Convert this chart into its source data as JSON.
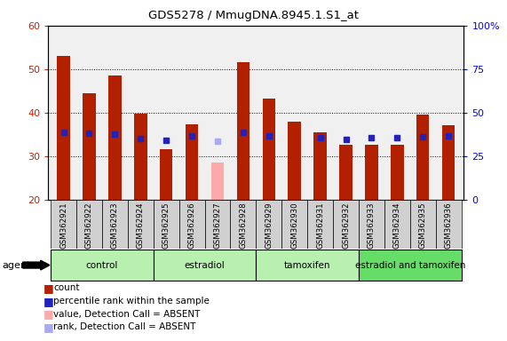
{
  "title": "GDS5278 / MmugDNA.8945.1.S1_at",
  "samples": [
    "GSM362921",
    "GSM362922",
    "GSM362923",
    "GSM362924",
    "GSM362925",
    "GSM362926",
    "GSM362927",
    "GSM362928",
    "GSM362929",
    "GSM362930",
    "GSM362931",
    "GSM362932",
    "GSM362933",
    "GSM362934",
    "GSM362935",
    "GSM362936"
  ],
  "count_values": [
    53.0,
    44.5,
    48.5,
    39.8,
    31.5,
    37.2,
    28.5,
    51.5,
    43.2,
    38.0,
    35.5,
    32.5,
    32.5,
    32.5,
    39.5,
    37.0
  ],
  "rank_values": [
    38.5,
    38.0,
    37.5,
    35.2,
    34.0,
    36.5,
    33.5,
    38.5,
    36.5,
    null,
    35.5,
    34.5,
    35.5,
    35.5,
    36.0,
    36.5
  ],
  "absent_count": [
    null,
    null,
    null,
    null,
    null,
    null,
    28.5,
    null,
    null,
    null,
    null,
    null,
    null,
    null,
    null,
    null
  ],
  "absent_rank": [
    null,
    null,
    null,
    null,
    null,
    null,
    33.5,
    null,
    null,
    null,
    null,
    null,
    null,
    null,
    null,
    null
  ],
  "ylim": [
    20,
    60
  ],
  "yticks": [
    20,
    30,
    40,
    50,
    60
  ],
  "y2lim": [
    0,
    100
  ],
  "y2ticks": [
    0,
    25,
    50,
    75,
    100
  ],
  "y2labels": [
    "0",
    "25",
    "50",
    "75",
    "100%"
  ],
  "bar_color": "#b22000",
  "rank_color": "#2222bb",
  "absent_bar_color": "#ffaaaa",
  "absent_rank_color": "#aaaaee",
  "groups": [
    {
      "label": "control",
      "start": 0,
      "end": 4,
      "color": "#b8f0b0"
    },
    {
      "label": "estradiol",
      "start": 4,
      "end": 8,
      "color": "#b8f0b0"
    },
    {
      "label": "tamoxifen",
      "start": 8,
      "end": 12,
      "color": "#b8f0b0"
    },
    {
      "label": "estradiol and tamoxifen",
      "start": 12,
      "end": 16,
      "color": "#66dd66"
    }
  ],
  "legend_items": [
    {
      "label": "count",
      "color": "#b22000"
    },
    {
      "label": "percentile rank within the sample",
      "color": "#2222bb"
    },
    {
      "label": "value, Detection Call = ABSENT",
      "color": "#ffaaaa"
    },
    {
      "label": "rank, Detection Call = ABSENT",
      "color": "#aaaaee"
    }
  ],
  "bar_width": 0.5,
  "rank_marker_size": 5,
  "plot_bg_color": "#f0f0f0",
  "label_bg_color": "#d0d0d0",
  "ybase": 20
}
